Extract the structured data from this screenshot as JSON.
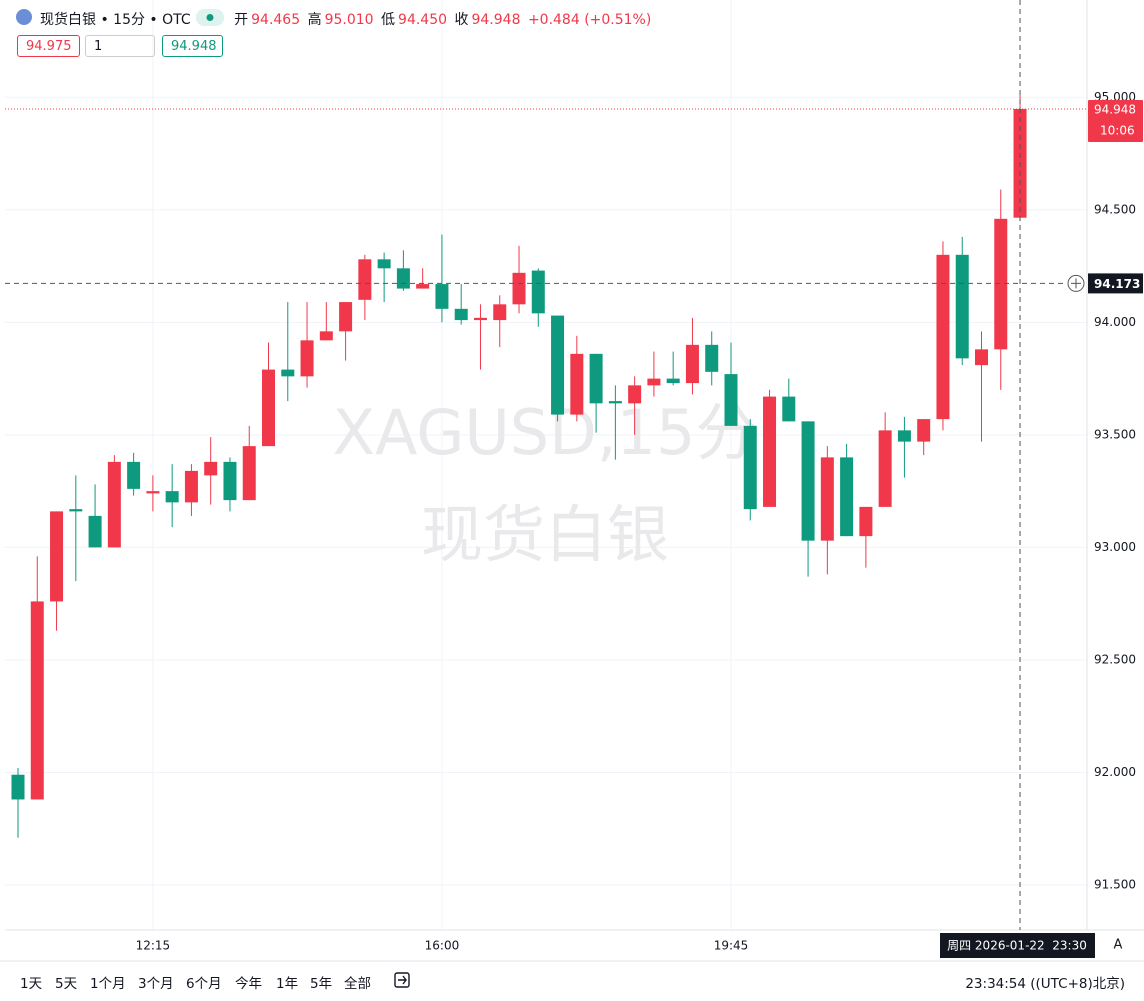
{
  "header": {
    "symbol": "现货白银 • 15分 • OTC",
    "open_label": "开",
    "open": "94.465",
    "high_label": "高",
    "high": "95.010",
    "low_label": "低",
    "low": "94.450",
    "close_label": "收",
    "close": "94.948",
    "change": "+0.484 (+0.51%)"
  },
  "order": {
    "sell": "94.975",
    "qty": "1",
    "buy": "94.948"
  },
  "watermark": {
    "line1": "XAGUSD,15分",
    "line2": "现货白银"
  },
  "chart_data": {
    "type": "candlestick",
    "up_color": "#f0384a",
    "down_color": "#0e9a7e",
    "grid": true,
    "categories": [
      null,
      null,
      null,
      null,
      null,
      null,
      null,
      "12:15",
      null,
      null,
      null,
      null,
      null,
      null,
      null,
      null,
      null,
      null,
      null,
      null,
      null,
      null,
      "16:00",
      null,
      null,
      null,
      null,
      null,
      null,
      null,
      null,
      null,
      null,
      null,
      null,
      null,
      null,
      "19:45",
      null,
      null,
      null,
      null,
      null,
      null,
      null,
      null,
      null,
      null,
      null,
      null,
      null,
      null,
      null
    ],
    "open": [
      91.99,
      91.88,
      92.76,
      93.17,
      93.14,
      93.0,
      93.38,
      93.24,
      93.25,
      93.2,
      93.32,
      93.38,
      93.21,
      93.45,
      93.79,
      93.76,
      93.92,
      93.96,
      94.1,
      94.28,
      94.24,
      94.15,
      94.17,
      94.06,
      94.01,
      94.01,
      94.08,
      94.23,
      94.03,
      93.59,
      93.86,
      93.65,
      93.64,
      93.72,
      93.75,
      93.73,
      93.9,
      93.77,
      93.54,
      93.18,
      93.67,
      93.56,
      93.03,
      93.4,
      93.05,
      93.18,
      93.52,
      93.47,
      93.57,
      94.3,
      93.81,
      93.88,
      94.465
    ],
    "high": [
      92.02,
      92.96,
      93.16,
      93.32,
      93.28,
      93.41,
      93.42,
      93.32,
      93.37,
      93.37,
      93.49,
      93.4,
      93.54,
      93.91,
      94.09,
      94.09,
      94.09,
      94.09,
      94.3,
      94.31,
      94.32,
      94.24,
      94.39,
      94.17,
      94.08,
      94.12,
      94.34,
      94.24,
      94.03,
      93.94,
      93.86,
      93.72,
      93.76,
      93.87,
      93.87,
      94.02,
      93.96,
      93.91,
      93.57,
      93.7,
      93.75,
      93.56,
      93.45,
      93.46,
      93.18,
      93.6,
      93.58,
      93.57,
      94.36,
      94.38,
      93.96,
      94.59,
      95.01
    ],
    "low": [
      91.71,
      91.88,
      92.63,
      92.85,
      93.0,
      93.0,
      93.23,
      93.16,
      93.09,
      93.14,
      93.19,
      93.16,
      93.21,
      93.45,
      93.65,
      93.71,
      93.92,
      93.83,
      94.01,
      94.09,
      94.14,
      94.15,
      94.0,
      93.99,
      93.79,
      93.89,
      94.04,
      93.98,
      93.56,
      93.56,
      93.51,
      93.39,
      93.5,
      93.67,
      93.72,
      93.68,
      93.72,
      93.54,
      93.12,
      93.18,
      93.56,
      92.87,
      92.88,
      93.05,
      92.91,
      93.18,
      93.31,
      93.41,
      93.52,
      93.81,
      93.47,
      93.7,
      94.45
    ],
    "close": [
      91.88,
      92.76,
      93.16,
      93.16,
      93.0,
      93.38,
      93.26,
      93.25,
      93.2,
      93.34,
      93.38,
      93.21,
      93.45,
      93.79,
      93.76,
      93.92,
      93.96,
      94.09,
      94.28,
      94.24,
      94.15,
      94.17,
      94.06,
      94.01,
      94.02,
      94.08,
      94.22,
      94.04,
      93.59,
      93.86,
      93.64,
      93.64,
      93.72,
      93.75,
      93.73,
      93.9,
      93.78,
      93.54,
      93.17,
      93.67,
      93.56,
      93.03,
      93.4,
      93.05,
      93.18,
      93.52,
      93.47,
      93.57,
      94.3,
      93.84,
      93.88,
      94.46,
      94.948
    ],
    "ylim": [
      91.3,
      95.41
    ],
    "yticks": [
      {
        "value": 91.5,
        "label": "91.500"
      },
      {
        "value": 92,
        "label": "92.000"
      },
      {
        "value": 92.5,
        "label": "92.500"
      },
      {
        "value": 93,
        "label": "93.000"
      },
      {
        "value": 93.5,
        "label": "93.500"
      },
      {
        "value": 94,
        "label": "94.000"
      },
      {
        "value": 94.5,
        "label": "94.500"
      },
      {
        "value": 95,
        "label": "95.000"
      }
    ],
    "last_price": 94.948,
    "countdown": "10:06",
    "crosshair_price": 94.173,
    "crosshair_time": "周四 2026-01-22  23:30"
  },
  "footer": {
    "ranges": [
      "1天",
      "5天",
      "1个月",
      "3个月",
      "6个月",
      "今年",
      "1年",
      "5年",
      "全部"
    ],
    "clock": "23:34:54 ((UTC+8)北京)",
    "auto": "A"
  }
}
